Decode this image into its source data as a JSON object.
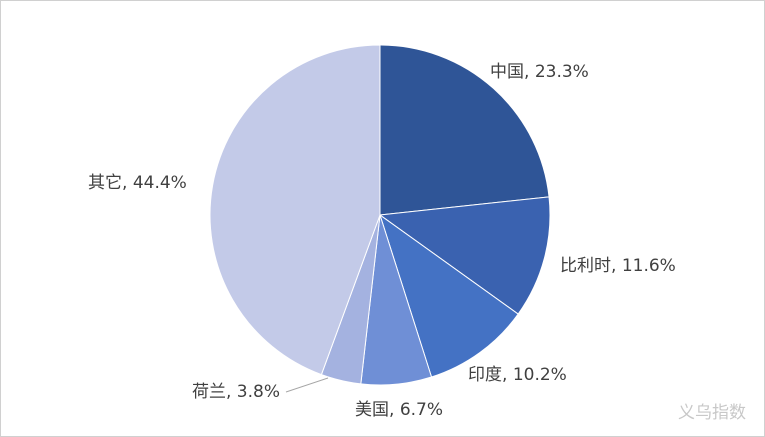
{
  "chart_data": {
    "type": "pie",
    "categories": [
      "中国",
      "比利时",
      "印度",
      "美国",
      "荷兰",
      "其它"
    ],
    "values": [
      23.3,
      11.6,
      10.2,
      6.7,
      3.8,
      44.4
    ],
    "value_labels": [
      "23.3%",
      "11.6%",
      "10.2%",
      "6.7%",
      "3.8%",
      "44.4%"
    ],
    "label_separator": ", ",
    "colors": [
      "#2f5597",
      "#3a62b0",
      "#4472c4",
      "#6f8fd6",
      "#a4b2e0",
      "#c3cae8"
    ],
    "watermark": "义乌指数"
  }
}
